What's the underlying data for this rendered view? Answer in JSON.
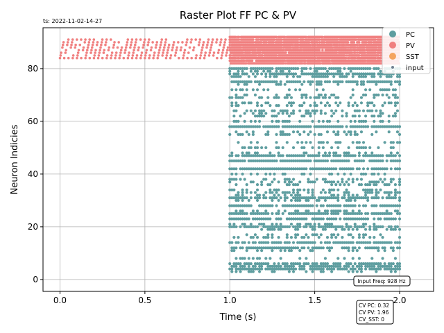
{
  "timestamp": "ts: 2022-11-02-14-27",
  "chart_data": {
    "type": "scatter",
    "title": "Raster Plot FF PC & PV",
    "xlabel": "Time (s)",
    "ylabel": "Neuron Indicies",
    "xlim": [
      -0.1,
      2.2
    ],
    "ylim": [
      -4.5,
      95.5
    ],
    "x_ticks": [
      0.0,
      0.5,
      1.0,
      1.5,
      2.0
    ],
    "x_tick_labels": [
      "0.0",
      "0.5",
      "1.0",
      "1.5",
      "2.0"
    ],
    "y_ticks": [
      0,
      20,
      40,
      60,
      80
    ],
    "y_tick_labels": [
      "0",
      "20",
      "40",
      "60",
      "80"
    ],
    "grid": true,
    "legend_position": "top-right",
    "series": [
      {
        "name": "PC",
        "color": "#5f9ea0",
        "marker": "circle-large",
        "x_range": [
          1.0,
          2.0
        ],
        "rows": [
          3,
          4,
          5,
          6,
          8,
          11,
          12,
          14,
          16,
          17,
          19,
          20,
          21,
          23,
          25,
          26,
          28,
          30,
          31,
          32,
          33,
          34,
          36,
          37,
          38,
          40,
          42,
          45,
          47,
          48,
          50,
          52,
          55,
          56,
          58,
          60,
          62,
          63,
          64,
          66,
          67,
          69,
          70,
          72,
          74,
          75,
          77,
          78,
          79,
          80
        ]
      },
      {
        "name": "PV",
        "color": "#f08080",
        "marker": "circle-large",
        "early_x_range": [
          0.0,
          1.0
        ],
        "early_y_range": [
          84,
          91
        ],
        "late_x_range": [
          1.0,
          2.0
        ],
        "late_y_range": [
          82,
          92
        ]
      },
      {
        "name": "SST",
        "color": "#f4a460",
        "marker": "circle-large"
      },
      {
        "name": "input",
        "color": "#708090",
        "marker": "dot",
        "x_range": [
          1.0,
          2.0
        ],
        "y": 0
      }
    ],
    "annotations": [
      {
        "id": "input-freq",
        "text": "Input Freq: 928 Hz"
      },
      {
        "id": "cv-box",
        "lines": [
          "CV PC: 0.32",
          "CV PV: 1.96",
          "CV_SST: 0"
        ]
      }
    ]
  }
}
